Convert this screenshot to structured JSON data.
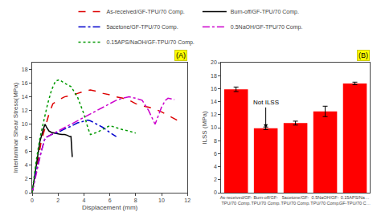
{
  "chart_data": [
    {
      "type": "line",
      "panel_label": "(A)",
      "xlabel": "Displacement (mm)",
      "ylabel": "Interlaminar Shear Stress(MPa)",
      "xlim": [
        0,
        12
      ],
      "ylim": [
        0,
        19
      ],
      "xticks": [
        0,
        2,
        4,
        6,
        8,
        10,
        12
      ],
      "yticks": [
        0,
        2,
        4,
        6,
        8,
        10,
        12,
        14,
        16,
        18
      ],
      "grid": false,
      "legend": "top",
      "series": [
        {
          "name": "As-received/GF-TPU/70 Comp.",
          "color": "#dd0000",
          "line_style": "dashed",
          "x": [
            0,
            0.3,
            0.7,
            1.0,
            1.3,
            1.6,
            2.0,
            2.5,
            3.0,
            3.5,
            4.0,
            4.5,
            5.0,
            5.5,
            6.0,
            6.5,
            7.0,
            7.5,
            8.0,
            8.5,
            9.0,
            9.5,
            10.0,
            10.5,
            11.0,
            11.5
          ],
          "values": [
            0,
            3,
            7.5,
            9.5,
            11.5,
            13.0,
            13.5,
            14.0,
            14.2,
            14.5,
            14.8,
            15.0,
            14.8,
            14.5,
            14.3,
            14.0,
            13.8,
            13.5,
            13.0,
            12.7,
            12.5,
            12.2,
            11.8,
            11.3,
            10.8,
            10.3
          ]
        },
        {
          "name": "Burn-off/GF-TPU/70 Comp.",
          "color": "black",
          "line_style": "solid",
          "x": [
            0,
            0.3,
            0.6,
            0.9,
            1.0,
            1.1,
            1.2,
            1.3,
            1.5,
            1.7,
            1.9,
            2.1,
            2.3,
            2.5,
            2.7,
            2.9,
            3.0,
            3.05,
            3.1
          ],
          "values": [
            0,
            4,
            7.5,
            9.5,
            10.0,
            9.6,
            9.3,
            9.0,
            8.8,
            8.7,
            8.6,
            8.55,
            8.5,
            8.5,
            8.4,
            8.2,
            8.2,
            6.5,
            5.2
          ]
        },
        {
          "name": "5acetone/GF-TPU/70 Comp.",
          "color": "#0000cc",
          "line_style": "dashdot",
          "x": [
            0,
            0.3,
            0.7,
            1.0,
            1.5,
            2.0,
            2.5,
            3.0,
            3.5,
            4.0,
            4.3,
            4.5,
            5.0,
            5.5,
            6.0,
            6.5
          ],
          "values": [
            0,
            3,
            6,
            8.0,
            8.5,
            8.8,
            9.3,
            9.7,
            10.2,
            10.5,
            10.6,
            10.5,
            10.0,
            9.5,
            8.8,
            8.2
          ]
        },
        {
          "name": "0.5NaOH/GF-TPU/70 Comp.",
          "color": "#cc00cc",
          "line_style": "dashdot",
          "x": [
            0,
            0.3,
            0.7,
            1.0,
            1.5,
            2.0,
            2.5,
            3.0,
            3.5,
            4.0,
            4.5,
            5.0,
            5.5,
            6.0,
            6.5,
            7.0,
            7.5,
            8.0,
            8.5,
            9.0,
            9.5,
            10.0,
            10.3,
            10.5,
            10.7,
            11.0
          ],
          "values": [
            0,
            2.5,
            6.0,
            8.0,
            8.5,
            9.0,
            9.5,
            10.0,
            10.5,
            11.0,
            11.5,
            12.0,
            12.5,
            13.0,
            13.5,
            13.8,
            14.0,
            13.8,
            13.5,
            12.0,
            10.0,
            12.5,
            13.5,
            13.8,
            13.7,
            13.6
          ]
        },
        {
          "name": "0.15APS/NaOH/GF-TPU/70 Comp.",
          "color": "#009900",
          "line_style": "dotted",
          "x": [
            0,
            0.3,
            0.6,
            0.9,
            1.2,
            1.5,
            1.8,
            2.1,
            2.5,
            3.0,
            3.5,
            4.0,
            4.3,
            4.5,
            5.0,
            5.5,
            6.0,
            6.5,
            7.0,
            7.5,
            8.0
          ],
          "values": [
            0,
            4.5,
            8.0,
            10.5,
            13.0,
            15.0,
            16.3,
            16.5,
            16.0,
            15.5,
            14.0,
            11.5,
            9.5,
            8.5,
            8.8,
            9.3,
            9.8,
            9.5,
            9.2,
            9.0,
            8.7
          ]
        }
      ]
    },
    {
      "type": "bar",
      "panel_label": "(B)",
      "ylabel": "ILSS (MPa)",
      "categories": [
        "As-received/GF-\nTPU/70 Comp.",
        "Burn-off/GF-\nTPU/70 Comp.",
        "5acetone/GF-\nTPU/70 Comp.",
        "0.5NaOH/GF-\nTPU/70 Comp.",
        "0.15APS/Na…\nGF-TPU/70 C…"
      ],
      "values": [
        15.9,
        9.9,
        10.7,
        12.5,
        16.8
      ],
      "errors": [
        0.35,
        0.2,
        0.3,
        0.8,
        0.2
      ],
      "color": "#ff0000",
      "ylim": [
        0,
        20
      ],
      "yticks": [
        0,
        2,
        4,
        6,
        8,
        10,
        12,
        14,
        16,
        18,
        20
      ],
      "grid": false,
      "annotations": [
        {
          "text": "Not ILSS",
          "category": "Burn-off/GF-\nTPU/70 Comp.",
          "y": 9.9
        }
      ]
    }
  ]
}
